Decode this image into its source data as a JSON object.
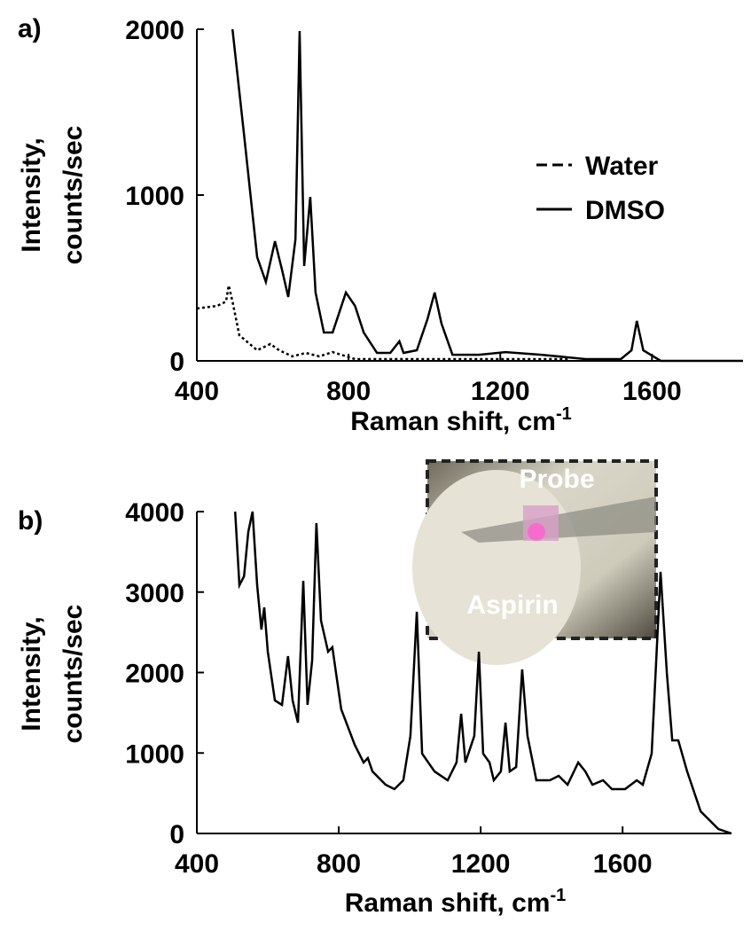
{
  "chart_data": [
    {
      "type": "line",
      "panel_label": "a)",
      "xlabel": "Raman shift, cm",
      "xlabel_sup": "-1",
      "ylabel": [
        "Intensity,",
        "counts/sec"
      ],
      "xlim": [
        400,
        1840
      ],
      "ylim": [
        0,
        2000
      ],
      "xticks": [
        400,
        800,
        1200,
        1600
      ],
      "yticks": [
        0,
        1000,
        2000
      ],
      "legend": "upper right",
      "series": [
        {
          "name": "Water",
          "color": "#000000",
          "dashed": true,
          "x": [
            400,
            454,
            477,
            484,
            494,
            512,
            559,
            594,
            617,
            652,
            687,
            723,
            758,
            817,
            1050,
            1378
          ],
          "values": [
            316,
            332,
            358,
            455,
            358,
            155,
            64,
            102,
            64,
            27,
            48,
            27,
            53,
            11,
            11,
            11
          ]
        },
        {
          "name": "DMSO",
          "color": "#000000",
          "dashed": false,
          "x": [
            494,
            524,
            559,
            582,
            606,
            625,
            641,
            660,
            671,
            683,
            699,
            713,
            735,
            758,
            793,
            817,
            840,
            875,
            910,
            934,
            945,
            980,
            1008,
            1027,
            1045,
            1074,
            1144,
            1214,
            1308,
            1425,
            1518,
            1546,
            1560,
            1577,
            1623,
            1840
          ],
          "values": [
            2000,
            1374,
            626,
            476,
            722,
            545,
            385,
            733,
            1989,
            572,
            989,
            412,
            171,
            171,
            412,
            332,
            171,
            48,
            48,
            118,
            48,
            64,
            251,
            412,
            225,
            37,
            37,
            53,
            37,
            11,
            11,
            64,
            241,
            64,
            0,
            0
          ]
        }
      ]
    },
    {
      "type": "line",
      "panel_label": "b)",
      "xlabel": "Raman shift, cm",
      "xlabel_sup": "-1",
      "ylabel": [
        "Intensity,",
        "counts/sec"
      ],
      "xlim": [
        400,
        1907
      ],
      "ylim": [
        0,
        4000
      ],
      "xticks": [
        400,
        800,
        1200,
        1600
      ],
      "yticks": [
        0,
        1000,
        2000,
        3000,
        4000
      ],
      "annotations": [
        "Probe",
        "Aspirin"
      ],
      "series": [
        {
          "color": "#000000",
          "dashed": false,
          "x": [
            508,
            520,
            533,
            545,
            557,
            570,
            582,
            590,
            600,
            620,
            640,
            657,
            670,
            685,
            700,
            712,
            725,
            737,
            750,
            770,
            782,
            807,
            845,
            870,
            882,
            895,
            932,
            957,
            982,
            1002,
            1020,
            1035,
            1070,
            1107,
            1132,
            1145,
            1157,
            1182,
            1195,
            1207,
            1225,
            1237,
            1257,
            1270,
            1282,
            1300,
            1317,
            1332,
            1357,
            1395,
            1420,
            1445,
            1475,
            1495,
            1515,
            1545,
            1570,
            1607,
            1640,
            1657,
            1682,
            1707,
            1725,
            1740,
            1757,
            1782,
            1820,
            1870,
            1907
          ],
          "values": [
            4000,
            3085,
            3196,
            3747,
            4000,
            3085,
            2534,
            2810,
            2259,
            1653,
            1598,
            2204,
            1653,
            1377,
            3140,
            1598,
            2149,
            3857,
            2645,
            2259,
            2314,
            1543,
            1102,
            882,
            937,
            771,
            606,
            551,
            661,
            1212,
            2755,
            992,
            771,
            661,
            882,
            1488,
            882,
            1212,
            2259,
            992,
            882,
            661,
            771,
            1377,
            771,
            826,
            2039,
            1212,
            661,
            661,
            716,
            606,
            882,
            771,
            606,
            661,
            551,
            551,
            661,
            606,
            992,
            3251,
            1983,
            1157,
            1157,
            771,
            275,
            55,
            0
          ]
        }
      ]
    }
  ]
}
